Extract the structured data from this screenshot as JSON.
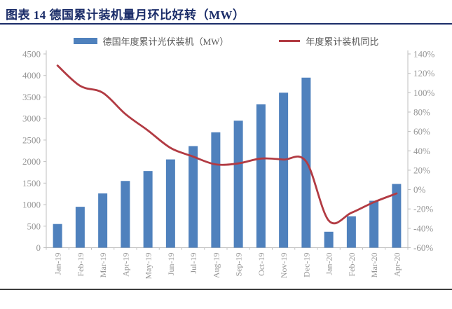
{
  "header": {
    "title": "图表 14 德国累计装机量月环比好转（MW）"
  },
  "colors": {
    "title": "#1b2d69",
    "title_rule": "#1b2d69",
    "bar": "#4f81bd",
    "line": "#b23b43",
    "axis_line": "#bfbfbf",
    "tick_label": "#969696",
    "legend_text": "#595959",
    "bottom_rule": "#3d3d3d"
  },
  "chart_data": {
    "type": "combo-bar-line",
    "title": "图表 14 德国累计装机量月环比好转（MW）",
    "categories": [
      "Jan-19",
      "Feb-19",
      "Mar-19",
      "Apr-19",
      "May-19",
      "Jun-19",
      "Jul-19",
      "Aug-19",
      "Sep-19",
      "Oct-19",
      "Nov-19",
      "Dec-19",
      "Jan-20",
      "Feb-20",
      "Mar-20",
      "Apr-20"
    ],
    "series": [
      {
        "name": "德国年度累计光伏装机（MW）",
        "type": "bar",
        "axis": "left",
        "values": [
          550,
          950,
          1260,
          1550,
          1780,
          2050,
          2360,
          2680,
          2950,
          3330,
          3600,
          3950,
          370,
          730,
          1090,
          1480
        ]
      },
      {
        "name": "年度累计装机同比",
        "type": "line",
        "axis": "right",
        "unit": "%",
        "values": [
          128,
          107,
          100,
          78,
          61,
          43,
          34,
          26,
          27,
          32,
          31,
          29,
          -32,
          -24,
          -13,
          -4
        ]
      }
    ],
    "left_axis": {
      "min": 0,
      "max": 4500,
      "step": 500,
      "tick_labels": [
        "0",
        "500",
        "1000",
        "1500",
        "2000",
        "2500",
        "3000",
        "3500",
        "4000",
        "4500"
      ]
    },
    "right_axis": {
      "min": -60,
      "max": 140,
      "step": 20,
      "tick_labels": [
        "-60%",
        "-40%",
        "-20%",
        "0%",
        "20%",
        "40%",
        "60%",
        "80%",
        "100%",
        "120%",
        "140%"
      ]
    },
    "legend_position": "top",
    "gridlines": false,
    "x_label_rotation": -90
  }
}
